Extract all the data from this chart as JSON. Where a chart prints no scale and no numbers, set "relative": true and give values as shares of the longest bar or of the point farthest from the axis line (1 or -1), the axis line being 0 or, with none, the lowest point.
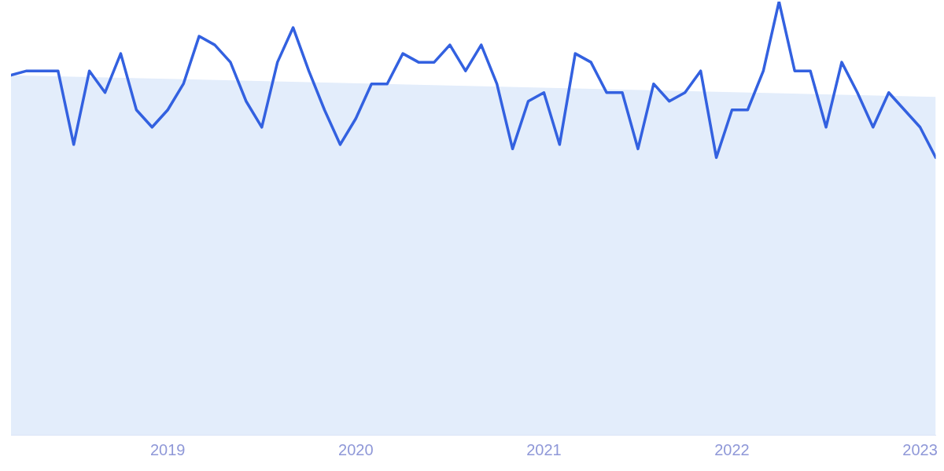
{
  "chart_data": {
    "type": "line",
    "relative": true,
    "x": [
      "2018-03",
      "2018-04",
      "2018-05",
      "2018-06",
      "2018-07",
      "2018-08",
      "2018-09",
      "2018-10",
      "2018-11",
      "2018-12",
      "2019-01",
      "2019-02",
      "2019-03",
      "2019-04",
      "2019-05",
      "2019-06",
      "2019-07",
      "2019-08",
      "2019-09",
      "2019-10",
      "2019-11",
      "2019-12",
      "2020-01",
      "2020-02",
      "2020-03",
      "2020-04",
      "2020-05",
      "2020-06",
      "2020-07",
      "2020-08",
      "2020-09",
      "2020-10",
      "2020-11",
      "2020-12",
      "2021-01",
      "2021-02",
      "2021-03",
      "2021-04",
      "2021-05",
      "2021-06",
      "2021-07",
      "2021-08",
      "2021-09",
      "2021-10",
      "2021-11",
      "2021-12",
      "2022-01",
      "2022-02",
      "2022-03",
      "2022-04",
      "2022-05",
      "2022-06",
      "2022-07",
      "2022-08",
      "2022-09",
      "2022-10",
      "2022-11",
      "2022-12",
      "2023-01",
      "2023-02"
    ],
    "series": [
      {
        "type": "area",
        "color": "#e3edfb",
        "x": [
          "2018-03",
          "2023-02"
        ],
        "values": [
          0.83,
          0.78
        ]
      },
      {
        "color": "#3361e0",
        "values": [
          0.83,
          0.84,
          0.84,
          0.84,
          0.67,
          0.84,
          0.79,
          0.88,
          0.75,
          0.71,
          0.75,
          0.81,
          0.92,
          0.9,
          0.86,
          0.77,
          0.71,
          0.86,
          0.94,
          0.84,
          0.75,
          0.67,
          0.73,
          0.81,
          0.81,
          0.88,
          0.86,
          0.86,
          0.9,
          0.84,
          0.9,
          0.81,
          0.66,
          0.77,
          0.79,
          0.67,
          0.88,
          0.86,
          0.79,
          0.79,
          0.66,
          0.81,
          0.77,
          0.79,
          0.84,
          0.64,
          0.75,
          0.75,
          0.84,
          1,
          0.84,
          0.84,
          0.71,
          0.86,
          0.79,
          0.71,
          0.79,
          0.75,
          0.71,
          0.64
        ]
      }
    ],
    "xlim": [
      "2018-03",
      "2023-02"
    ],
    "xticks": [
      "2019",
      "2020",
      "2021",
      "2022",
      "2023"
    ],
    "legend": false,
    "marker": "none",
    "line_style": "solid"
  }
}
